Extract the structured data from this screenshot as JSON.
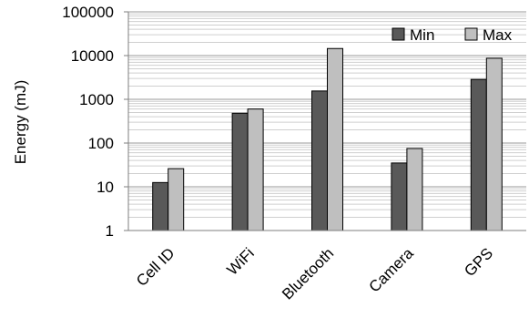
{
  "chart_data": {
    "type": "bar",
    "scale": "log",
    "ylabel": "Energy (mJ)",
    "xlabel": "",
    "title": "",
    "ylim": [
      1,
      100000
    ],
    "yticks": [
      "1",
      "10",
      "100",
      "1000",
      "10000",
      "100000"
    ],
    "categories": [
      "Cell ID",
      "WiFi",
      "Bluetooth",
      "Camera",
      "GPS"
    ],
    "series": [
      {
        "name": "Min",
        "values": [
          12.5,
          480,
          1550,
          35,
          2850
        ],
        "color": "#595959"
      },
      {
        "name": "Max",
        "values": [
          26,
          600,
          14500,
          75,
          8700
        ],
        "color": "#bfbfbf"
      }
    ],
    "grid": true,
    "legend_position": "top-right"
  }
}
